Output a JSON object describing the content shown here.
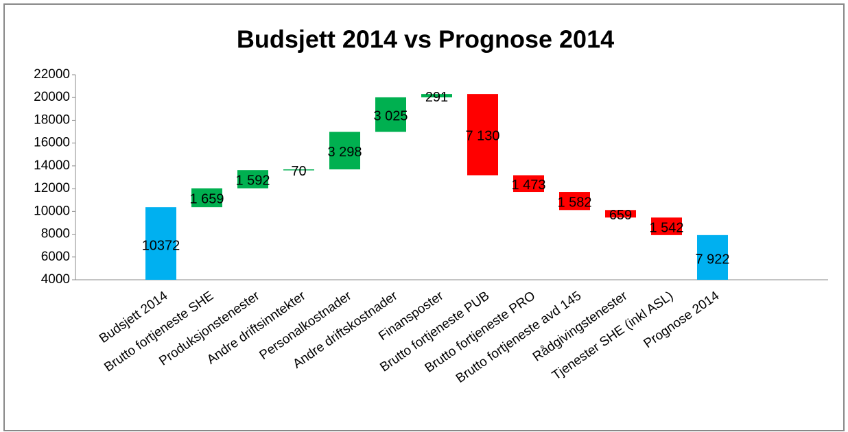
{
  "chart_data": {
    "type": "waterfall",
    "title": "Budsjett 2014 vs Prognose 2014",
    "categories": [
      "Budsjett 2014",
      "Brutto fortjeneste SHE",
      "Produksjonstenester",
      "Andre driftsinntekter",
      "Personalkostnader",
      "Andre driftskostnader",
      "Finansposter",
      "Brutto fortjeneste PUB",
      "Brutto fortjeneste PRO",
      "Brutto fortjeneste avd 145",
      "Rådgivingstenester",
      "Tjenester SHE (inkl ASL)",
      "Prognose 2014"
    ],
    "values": [
      10372,
      1659,
      1592,
      70,
      3298,
      3025,
      291,
      7130,
      1473,
      1582,
      659,
      1542,
      7922
    ],
    "value_labels": [
      "10372",
      "1 659",
      "1 592",
      "70",
      "3 298",
      "3 025",
      "291",
      "7 130",
      "1 473",
      "1 582",
      "659",
      "1 542",
      "7 922"
    ],
    "kinds": [
      "total",
      "increase",
      "increase",
      "increase",
      "increase",
      "increase",
      "increase",
      "decrease",
      "decrease",
      "decrease",
      "decrease",
      "decrease",
      "total"
    ],
    "colors": {
      "total": "#00b0f0",
      "increase": "#00b050",
      "decrease": "#ff0000"
    },
    "ylim": [
      4000,
      22000
    ],
    "yticks": [
      4000,
      6000,
      8000,
      10000,
      12000,
      14000,
      16000,
      18000,
      20000,
      22000
    ],
    "grid": false
  }
}
